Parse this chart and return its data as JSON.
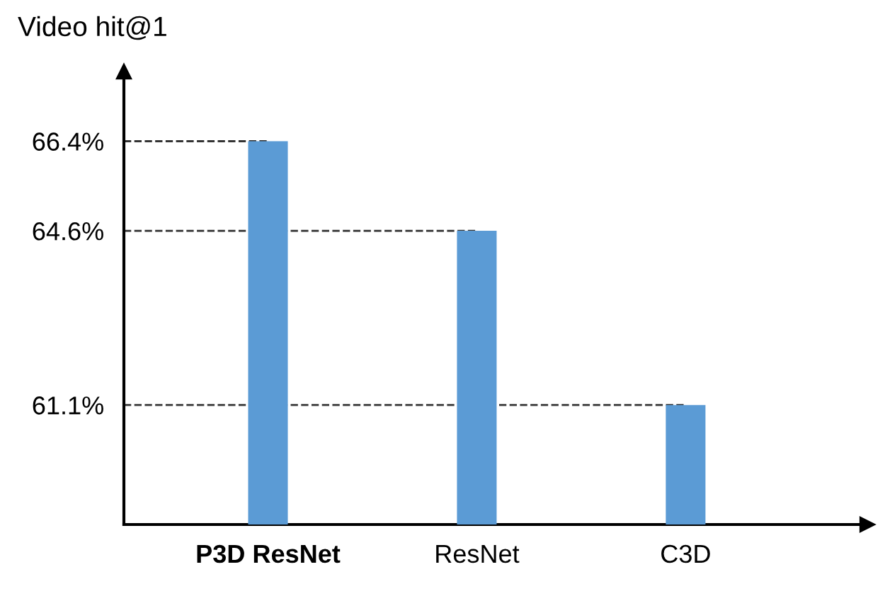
{
  "chart_data": {
    "type": "bar",
    "ylabel": "Video hit@1",
    "categories": [
      "P3D ResNet",
      "ResNet",
      "C3D"
    ],
    "values": [
      66.4,
      64.6,
      61.1
    ],
    "color": "#5b9bd5",
    "ylim": [
      58.7,
      67.8
    ],
    "yticks": [
      {
        "value": 61.1,
        "label": "61.1%"
      },
      {
        "value": 64.6,
        "label": "64.6%"
      },
      {
        "value": 66.4,
        "label": "66.4%"
      }
    ],
    "ref_lines": [
      {
        "axis": "y",
        "value": 66.4,
        "line_style": "dashed",
        "color": "#333333"
      },
      {
        "axis": "y",
        "value": 64.6,
        "line_style": "dashed",
        "color": "#333333"
      },
      {
        "axis": "y",
        "value": 61.1,
        "line_style": "dashed",
        "color": "#333333"
      }
    ],
    "grid": false
  }
}
